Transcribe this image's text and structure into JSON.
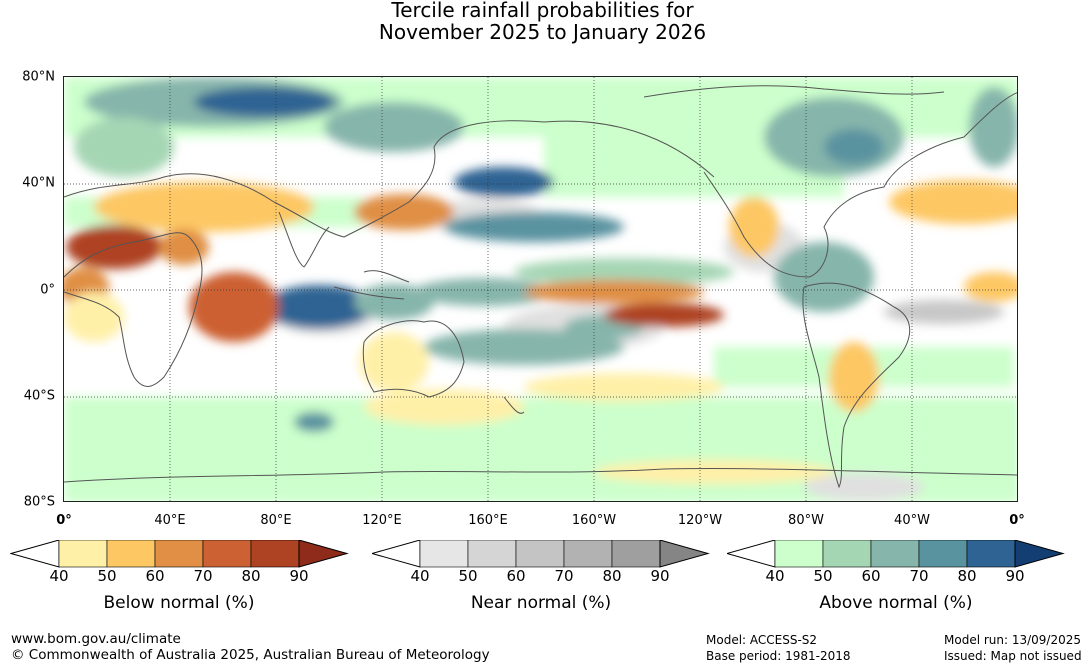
{
  "title": {
    "line1": "Tercile rainfall probabilities for",
    "line2": "November 2025 to January 2026"
  },
  "axes": {
    "lat_labels": [
      "80°N",
      "40°N",
      "0°",
      "40°S",
      "80°S"
    ],
    "lon_labels": [
      "0°",
      "40°E",
      "80°E",
      "120°E",
      "160°E",
      "160°W",
      "120°W",
      "80°W",
      "40°W",
      "0°"
    ]
  },
  "legends": [
    {
      "id": "below",
      "label": "Below normal (%)",
      "ticks": [
        "40",
        "50",
        "60",
        "70",
        "80",
        "90"
      ],
      "colors": [
        "#fff0a8",
        "#fdc764",
        "#e08f44",
        "#cc6133",
        "#ae4323",
        "#8e2b1a"
      ]
    },
    {
      "id": "near",
      "label": "Near normal (%)",
      "ticks": [
        "40",
        "50",
        "60",
        "70",
        "80",
        "90"
      ],
      "colors": [
        "#e6e6e6",
        "#d5d5d5",
        "#c4c4c4",
        "#b2b2b2",
        "#9f9f9f",
        "#858585"
      ]
    },
    {
      "id": "above",
      "label": "Above normal (%)",
      "ticks": [
        "40",
        "50",
        "60",
        "70",
        "80",
        "90"
      ],
      "colors": [
        "#ccffcc",
        "#a5d6b4",
        "#86b5ab",
        "#5a93a0",
        "#2f6393",
        "#123e73"
      ]
    }
  ],
  "footer": {
    "website": "www.bom.gov.au/climate",
    "copyright": "© Commonwealth of Australia 2025, Australian Bureau of Meteorology",
    "model": "Model: ACCESS-S2",
    "base_period": "Base period: 1981-2018",
    "model_run": "Model run: 13/09/2025",
    "issued": "Issued: Map not issued"
  }
}
